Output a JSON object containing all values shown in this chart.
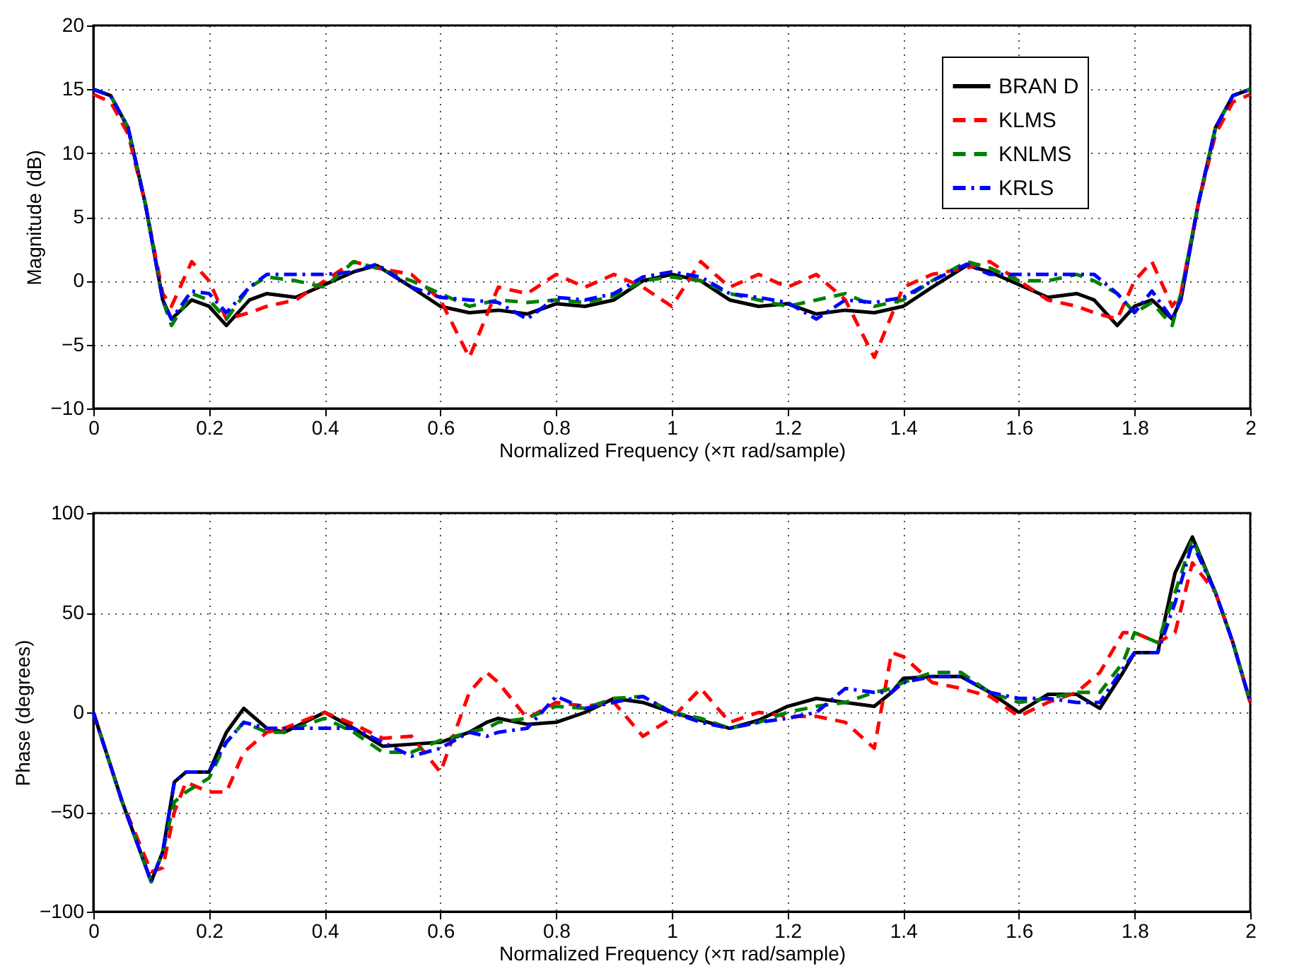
{
  "chart_data": [
    {
      "type": "line",
      "xlabel": "Normalized Frequency  (×π rad/sample)",
      "ylabel": "Magnitude (dB)",
      "xlim": [
        0,
        2
      ],
      "ylim": [
        -10,
        20
      ],
      "xticks": [
        0,
        0.2,
        0.4,
        0.6,
        0.8,
        1,
        1.2,
        1.4,
        1.6,
        1.8,
        2
      ],
      "yticks": [
        -10,
        -5,
        0,
        5,
        10,
        15,
        20
      ],
      "grid": true,
      "legend": "top right",
      "marker": "none",
      "x": [
        0,
        0.03,
        0.06,
        0.09,
        0.12,
        0.135,
        0.17,
        0.2,
        0.23,
        0.27,
        0.3,
        0.35,
        0.4,
        0.45,
        0.49,
        0.55,
        0.6,
        0.65,
        0.7,
        0.75,
        0.8,
        0.85,
        0.9,
        0.95,
        1.0,
        1.05,
        1.1,
        1.15,
        1.2,
        1.25,
        1.3,
        1.35,
        1.4,
        1.45,
        1.51,
        1.55,
        1.6,
        1.65,
        1.7,
        1.73,
        1.77,
        1.8,
        1.83,
        1.865,
        1.88,
        1.91,
        1.94,
        1.97,
        2.0
      ],
      "series": [
        {
          "name": "BRAN D",
          "color": "#000000",
          "line_style": "solid",
          "values": [
            15,
            14.5,
            12,
            6,
            -1.5,
            -3,
            -1.5,
            -2,
            -3.5,
            -1.5,
            -1,
            -1.3,
            -0.3,
            0.7,
            1.2,
            -0.5,
            -2,
            -2.5,
            -2.3,
            -2.6,
            -1.8,
            -2,
            -1.5,
            0,
            0.5,
            0,
            -1.5,
            -2,
            -1.8,
            -2.6,
            -2.3,
            -2.5,
            -2,
            -0.5,
            1.2,
            0.7,
            -0.3,
            -1.3,
            -1,
            -1.5,
            -3.5,
            -2,
            -1.5,
            -3,
            -1.5,
            6,
            12,
            14.5,
            15
          ]
        },
        {
          "name": "KLMS",
          "color": "#ff0000",
          "line_style": "dashed",
          "values": [
            14.6,
            14,
            11.5,
            6,
            -1,
            -2,
            1.5,
            0,
            -3,
            -2.5,
            -2,
            -1.5,
            0,
            1.5,
            1,
            0.5,
            -1.5,
            -6,
            -0.5,
            -1,
            0.5,
            -0.5,
            0.5,
            -0.5,
            -2,
            1.5,
            -0.5,
            0.5,
            -0.5,
            0.5,
            -1.5,
            -6,
            -0.5,
            0.5,
            1,
            1.5,
            0,
            -1.5,
            -2,
            -2.5,
            -3,
            0,
            1.5,
            -2,
            -1,
            6,
            11.5,
            14,
            14.6
          ]
        },
        {
          "name": "KNLMS",
          "color": "#008000",
          "line_style": "dashed",
          "values": [
            15,
            14.5,
            12,
            6,
            -1.5,
            -3.5,
            -1,
            -1.5,
            -3,
            -0.5,
            0.3,
            0,
            -0.5,
            1.5,
            1,
            0,
            -1,
            -2,
            -1.5,
            -1.7,
            -1.5,
            -1.7,
            -1.2,
            0,
            0.3,
            0,
            -1,
            -1.5,
            -2,
            -1.5,
            -1,
            -2,
            -1.5,
            0,
            1.5,
            1,
            0,
            0,
            0.5,
            0,
            -1,
            -2.5,
            -1.7,
            -3.5,
            -1,
            6,
            12,
            14.5,
            15
          ]
        },
        {
          "name": "KRLS",
          "color": "#0000ff",
          "line_style": "dashdot",
          "values": [
            15,
            14.5,
            12,
            6,
            -1.5,
            -3,
            -0.8,
            -1,
            -2.5,
            -0.5,
            0.5,
            0.5,
            0.5,
            0.7,
            1.3,
            -0.5,
            -1.3,
            -1.5,
            -1.7,
            -3,
            -1.3,
            -1.5,
            -1,
            0.3,
            0.7,
            0.3,
            -1,
            -1.3,
            -1.7,
            -3,
            -1.5,
            -1.7,
            -1.3,
            0,
            1.3,
            0.5,
            0.5,
            0.5,
            0.5,
            0.5,
            -1,
            -2.5,
            -0.8,
            -3,
            -1.5,
            6,
            12,
            14.5,
            15
          ]
        }
      ]
    },
    {
      "type": "line",
      "xlabel": "Normalized Frequency  (×π rad/sample)",
      "ylabel": "Phase (degrees)",
      "xlim": [
        0,
        2
      ],
      "ylim": [
        -100,
        100
      ],
      "xticks": [
        0,
        0.2,
        0.4,
        0.6,
        0.8,
        1,
        1.2,
        1.4,
        1.6,
        1.8,
        2
      ],
      "yticks": [
        -100,
        -50,
        0,
        50,
        100
      ],
      "grid": true,
      "marker": "none",
      "x": [
        0,
        0.05,
        0.1,
        0.12,
        0.14,
        0.16,
        0.2,
        0.23,
        0.26,
        0.3,
        0.33,
        0.4,
        0.45,
        0.5,
        0.55,
        0.6,
        0.65,
        0.68,
        0.7,
        0.75,
        0.8,
        0.85,
        0.9,
        0.95,
        1.0,
        1.05,
        1.1,
        1.15,
        1.2,
        1.25,
        1.3,
        1.35,
        1.38,
        1.4,
        1.45,
        1.5,
        1.55,
        1.6,
        1.65,
        1.7,
        1.74,
        1.78,
        1.8,
        1.84,
        1.87,
        1.9,
        1.94,
        1.97,
        2.0
      ],
      "series": [
        {
          "color": "#000000",
          "line_style": "solid",
          "values": [
            0,
            -45,
            -85,
            -70,
            -35,
            -30,
            -30,
            -10,
            2,
            -8,
            -10,
            0,
            -8,
            -17,
            -16,
            -15,
            -10,
            -5,
            -3,
            -6,
            -5,
            0,
            7,
            5,
            0,
            -4,
            -8,
            -4,
            3,
            7,
            5,
            3,
            10,
            17,
            18,
            18,
            10,
            0,
            9,
            9,
            2,
            20,
            30,
            30,
            70,
            88,
            60,
            35,
            5
          ]
        },
        {
          "color": "#ff0000",
          "line_style": "dashed",
          "values": [
            0,
            -45,
            -80,
            -78,
            -50,
            -35,
            -40,
            -40,
            -20,
            -10,
            -8,
            0,
            -6,
            -13,
            -12,
            -30,
            10,
            20,
            15,
            -3,
            5,
            3,
            5,
            -12,
            -3,
            12,
            -5,
            0,
            -2,
            -2,
            -5,
            -18,
            30,
            28,
            15,
            12,
            8,
            -2,
            5,
            10,
            20,
            40,
            40,
            35,
            40,
            75,
            60,
            35,
            5
          ]
        },
        {
          "color": "#008000",
          "line_style": "dashed",
          "values": [
            0,
            -45,
            -85,
            -70,
            -45,
            -40,
            -33,
            -15,
            -5,
            -10,
            -10,
            -3,
            -10,
            -20,
            -20,
            -14,
            -10,
            -8,
            -5,
            -3,
            3,
            2,
            7,
            8,
            0,
            -3,
            -8,
            -5,
            0,
            3,
            5,
            10,
            12,
            15,
            20,
            20,
            10,
            5,
            7,
            10,
            10,
            25,
            40,
            35,
            60,
            87,
            60,
            35,
            5
          ]
        },
        {
          "color": "#0000ff",
          "line_style": "dashdot",
          "values": [
            0,
            -45,
            -85,
            -70,
            -35,
            -30,
            -30,
            -15,
            -5,
            -8,
            -8,
            -8,
            -8,
            -15,
            -22,
            -18,
            -10,
            -12,
            -10,
            -8,
            8,
            2,
            5,
            8,
            0,
            -5,
            -8,
            -5,
            -3,
            0,
            12,
            10,
            10,
            15,
            18,
            18,
            10,
            7,
            7,
            5,
            5,
            22,
            30,
            30,
            55,
            85,
            60,
            35,
            5
          ]
        }
      ]
    }
  ]
}
